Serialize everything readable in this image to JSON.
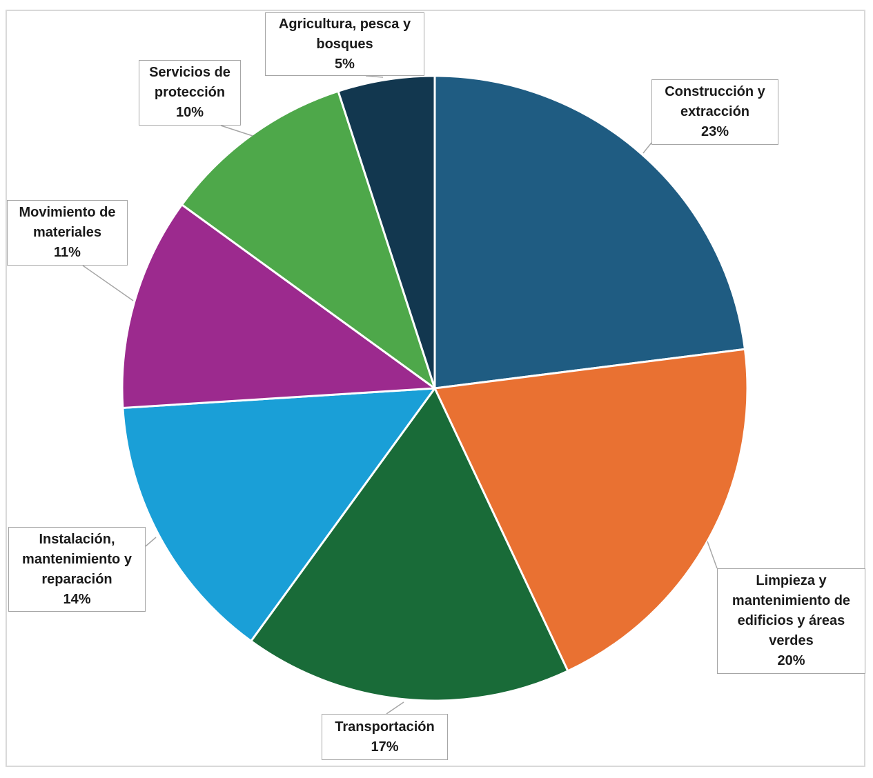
{
  "chart_data": {
    "type": "pie",
    "title": "",
    "slices": [
      {
        "label": "Construcción y\nextracción",
        "percent_label": "23%",
        "value": 23,
        "color": "#1f5c82"
      },
      {
        "label": "Limpieza y\nmantenimiento de\nedificios y áreas\nverdes",
        "percent_label": "20%",
        "value": 20,
        "color": "#e97132"
      },
      {
        "label": "Transportación",
        "percent_label": "17%",
        "value": 17,
        "color": "#196b38"
      },
      {
        "label": "Instalación,\nmantenimiento y\nreparación",
        "percent_label": "14%",
        "value": 14,
        "color": "#1a9fd7"
      },
      {
        "label": "Movimiento de\nmateriales",
        "percent_label": "11%",
        "value": 11,
        "color": "#9c2a8e"
      },
      {
        "label": "Servicios de\nprotección",
        "percent_label": "10%",
        "value": 10,
        "color": "#4ea84a"
      },
      {
        "label": "Agricultura, pesca y\nbosques",
        "percent_label": "5%",
        "value": 5,
        "color": "#12374f"
      }
    ],
    "start_angle": "12 o'clock",
    "direction": "clockwise",
    "label_style": "callout boxes with leader lines",
    "legend": "none"
  }
}
